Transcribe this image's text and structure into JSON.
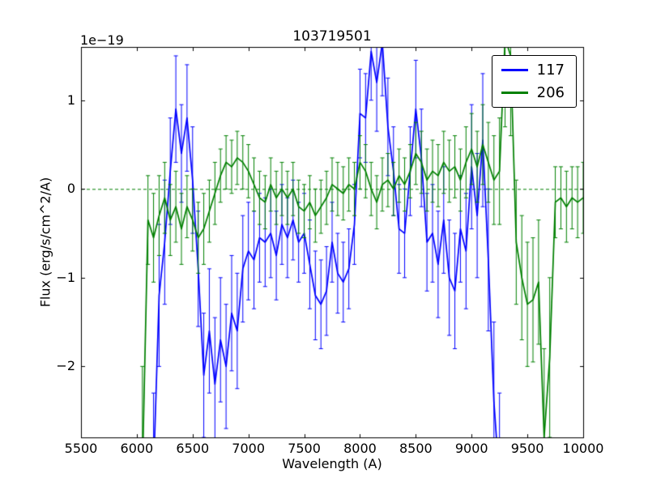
{
  "chart_data": {
    "type": "line",
    "title": "103719501",
    "xlabel": "Wavelength (A)",
    "ylabel": "Flux (erg/s/cm^2/A)",
    "y_offset_label": "1e−19",
    "xlim": [
      5500,
      10000
    ],
    "ylim": [
      -2.8,
      1.6
    ],
    "x_ticks": [
      5500,
      6000,
      6500,
      7000,
      7500,
      8000,
      8500,
      9000,
      9500,
      10000
    ],
    "y_ticks": [
      -2,
      -1,
      0,
      1
    ],
    "grid": false,
    "zero_line": {
      "y": 0,
      "style": "dashed",
      "color": "#008000"
    },
    "legend": {
      "position": "upper right"
    },
    "background_color": "#ffffff",
    "series": [
      {
        "name": "117",
        "color": "#0000ff",
        "x": [
          6150,
          6200,
          6250,
          6300,
          6350,
          6400,
          6450,
          6500,
          6550,
          6600,
          6650,
          6700,
          6750,
          6800,
          6850,
          6900,
          6950,
          7000,
          7050,
          7100,
          7150,
          7200,
          7250,
          7300,
          7350,
          7400,
          7450,
          7500,
          7550,
          7600,
          7650,
          7700,
          7750,
          7800,
          7850,
          7900,
          7950,
          8000,
          8050,
          8100,
          8150,
          8200,
          8250,
          8300,
          8350,
          8400,
          8450,
          8500,
          8550,
          8600,
          8650,
          8700,
          8750,
          8800,
          8850,
          8900,
          8950,
          9000,
          9050,
          9100,
          9150,
          9200,
          9250
        ],
        "y": [
          -3.2,
          -1.2,
          -0.6,
          0.2,
          0.9,
          0.4,
          0.8,
          0.1,
          -0.9,
          -2.1,
          -1.6,
          -2.2,
          -1.7,
          -2.0,
          -1.4,
          -1.6,
          -0.9,
          -0.7,
          -0.8,
          -0.55,
          -0.6,
          -0.5,
          -0.75,
          -0.4,
          -0.55,
          -0.35,
          -0.6,
          -0.5,
          -0.85,
          -1.2,
          -1.3,
          -1.15,
          -0.6,
          -0.95,
          -1.05,
          -0.9,
          -0.4,
          0.85,
          0.8,
          1.55,
          1.2,
          1.65,
          0.7,
          0.2,
          -0.45,
          -0.5,
          0.2,
          0.9,
          0.35,
          -0.6,
          -0.5,
          -0.85,
          -0.35,
          -1.0,
          -1.15,
          -0.45,
          -0.7,
          0.25,
          -0.3,
          0.55,
          -0.8,
          -2.4,
          -3.3
        ],
        "yerr": [
          0.9,
          0.8,
          0.7,
          0.6,
          0.6,
          0.55,
          0.6,
          0.6,
          0.65,
          0.7,
          0.7,
          0.75,
          0.7,
          0.7,
          0.65,
          0.65,
          0.6,
          0.55,
          0.55,
          0.5,
          0.5,
          0.5,
          0.5,
          0.45,
          0.45,
          0.45,
          0.45,
          0.45,
          0.5,
          0.5,
          0.5,
          0.5,
          0.45,
          0.45,
          0.45,
          0.45,
          0.45,
          0.5,
          0.5,
          0.55,
          0.55,
          0.6,
          0.55,
          0.5,
          0.5,
          0.5,
          0.5,
          0.55,
          0.55,
          0.55,
          0.55,
          0.6,
          0.6,
          0.65,
          0.65,
          0.6,
          0.65,
          0.7,
          0.7,
          0.75,
          0.8,
          0.9,
          1.0
        ]
      },
      {
        "name": "206",
        "color": "#008000",
        "x": [
          6050,
          6100,
          6150,
          6200,
          6250,
          6300,
          6350,
          6400,
          6450,
          6500,
          6550,
          6600,
          6650,
          6700,
          6750,
          6800,
          6850,
          6900,
          6950,
          7000,
          7050,
          7100,
          7150,
          7200,
          7250,
          7300,
          7350,
          7400,
          7450,
          7500,
          7550,
          7600,
          7650,
          7700,
          7750,
          7800,
          7850,
          7900,
          7950,
          8000,
          8050,
          8100,
          8150,
          8200,
          8250,
          8300,
          8350,
          8400,
          8450,
          8500,
          8550,
          8600,
          8650,
          8700,
          8750,
          8800,
          8850,
          8900,
          8950,
          9000,
          9050,
          9100,
          9150,
          9200,
          9250,
          9300,
          9350,
          9400,
          9450,
          9500,
          9550,
          9600,
          9650,
          9700,
          9750,
          9800,
          9850,
          9900,
          9950,
          10000
        ],
        "y": [
          -3.2,
          -0.35,
          -0.55,
          -0.3,
          -0.1,
          -0.35,
          -0.2,
          -0.45,
          -0.2,
          -0.35,
          -0.55,
          -0.45,
          -0.25,
          -0.05,
          0.15,
          0.3,
          0.25,
          0.35,
          0.3,
          0.2,
          0.05,
          -0.1,
          -0.15,
          0.05,
          -0.1,
          0.0,
          -0.1,
          0.0,
          -0.2,
          -0.25,
          -0.15,
          -0.3,
          -0.2,
          -0.1,
          0.05,
          0.0,
          -0.05,
          0.05,
          0.0,
          0.3,
          0.2,
          0.0,
          -0.15,
          0.05,
          0.1,
          0.0,
          0.15,
          0.05,
          0.2,
          0.4,
          0.3,
          0.1,
          0.2,
          0.15,
          0.3,
          0.2,
          0.25,
          0.1,
          0.3,
          0.45,
          0.25,
          0.5,
          0.3,
          0.1,
          0.2,
          1.7,
          1.5,
          -0.6,
          -1.0,
          -1.3,
          -1.25,
          -1.05,
          -2.8,
          -1.9,
          -0.15,
          -0.1,
          -0.2,
          -0.1,
          -0.15,
          -0.1
        ],
        "yerr": [
          1.2,
          0.5,
          0.5,
          0.45,
          0.4,
          0.4,
          0.4,
          0.4,
          0.35,
          0.35,
          0.4,
          0.4,
          0.35,
          0.35,
          0.3,
          0.3,
          0.3,
          0.3,
          0.3,
          0.3,
          0.3,
          0.3,
          0.3,
          0.3,
          0.3,
          0.3,
          0.3,
          0.3,
          0.3,
          0.3,
          0.3,
          0.3,
          0.3,
          0.3,
          0.3,
          0.3,
          0.3,
          0.3,
          0.3,
          0.3,
          0.3,
          0.3,
          0.3,
          0.3,
          0.3,
          0.3,
          0.3,
          0.3,
          0.3,
          0.35,
          0.35,
          0.35,
          0.35,
          0.35,
          0.35,
          0.35,
          0.35,
          0.35,
          0.4,
          0.4,
          0.4,
          0.45,
          0.45,
          0.5,
          0.6,
          1.0,
          0.9,
          0.7,
          0.7,
          0.7,
          0.7,
          0.7,
          1.0,
          0.9,
          0.4,
          0.35,
          0.4,
          0.35,
          0.4,
          0.4
        ]
      }
    ]
  }
}
